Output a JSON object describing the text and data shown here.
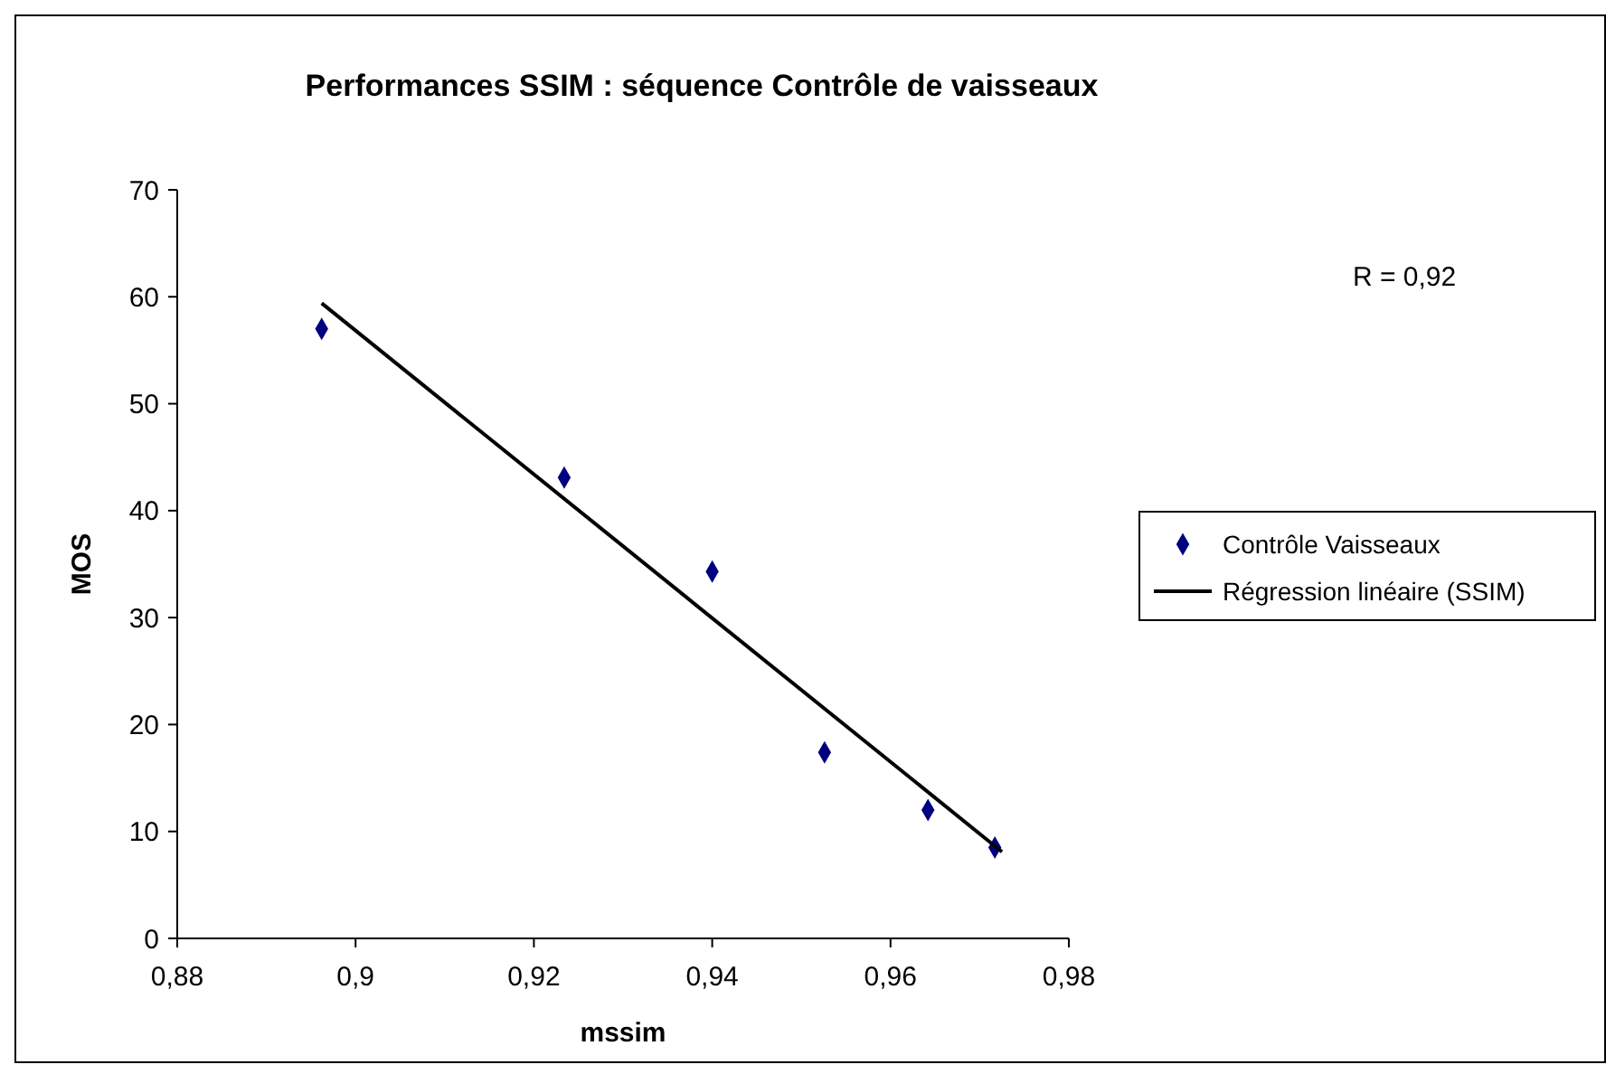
{
  "chart_data": {
    "type": "scatter",
    "title": "Performances SSIM : séquence Contrôle de vaisseaux",
    "xlabel": "mssim",
    "ylabel": "MOS",
    "annotations": [
      "R = 0,92"
    ],
    "xlim": [
      0.88,
      0.98
    ],
    "xticks": [
      {
        "value": 0.88,
        "label": "0,88"
      },
      {
        "value": 0.9,
        "label": "0,9"
      },
      {
        "value": 0.92,
        "label": "0,92"
      },
      {
        "value": 0.94,
        "label": "0,94"
      },
      {
        "value": 0.96,
        "label": "0,96"
      },
      {
        "value": 0.98,
        "label": "0,98"
      }
    ],
    "ylim": [
      0,
      70
    ],
    "yticks": [
      0,
      10,
      20,
      30,
      40,
      50,
      60,
      70
    ],
    "grid": false,
    "legend": "right",
    "series": [
      {
        "name": "Contrôle Vaisseaux",
        "color": "#000080",
        "marker": "diamond",
        "x": [
          0.8962,
          0.9234,
          0.94,
          0.9526,
          0.9642,
          0.9717
        ],
        "values": [
          57,
          43.1,
          34.3,
          17.4,
          12,
          8.5
        ]
      },
      {
        "name": "Régression linéaire (SSIM)",
        "type": "line",
        "color": "#000000",
        "marker": "none",
        "line_style": "solid",
        "x": [
          0.8962,
          0.9725
        ],
        "values": [
          59.4,
          8.1
        ]
      }
    ]
  }
}
